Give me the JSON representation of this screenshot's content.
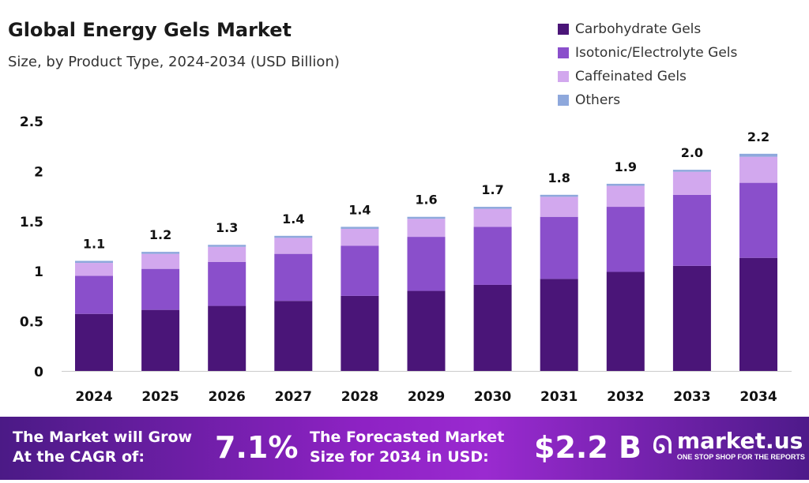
{
  "chart_data": {
    "type": "bar",
    "stacked": true,
    "title": "Global Energy Gels Market",
    "subtitle": "Size, by Product Type, 2024-2034 (USD Billion)",
    "xlabel": "",
    "ylabel": "",
    "ylim": [
      0,
      2.5
    ],
    "yticks": [
      "0",
      "0.5",
      "1",
      "1.5",
      "2",
      "2.5"
    ],
    "grid": false,
    "legend_position": "top-right",
    "categories": [
      "2024",
      "2025",
      "2026",
      "2027",
      "2028",
      "2029",
      "2030",
      "2031",
      "2032",
      "2033",
      "2034"
    ],
    "totals_labels": [
      "1.1",
      "1.2",
      "1.3",
      "1.4",
      "1.4",
      "1.6",
      "1.7",
      "1.8",
      "1.9",
      "2.0",
      "2.2"
    ],
    "series": [
      {
        "name": "Carbohydrate Gels",
        "color": "#4a1578",
        "values": [
          0.57,
          0.61,
          0.65,
          0.7,
          0.75,
          0.8,
          0.86,
          0.92,
          0.99,
          1.05,
          1.13
        ]
      },
      {
        "name": "Isotonic/Electrolyte Gels",
        "color": "#8a4fcb",
        "values": [
          0.38,
          0.41,
          0.44,
          0.47,
          0.5,
          0.54,
          0.58,
          0.62,
          0.65,
          0.71,
          0.75
        ]
      },
      {
        "name": "Caffeinated Gels",
        "color": "#d2a8ee",
        "values": [
          0.13,
          0.15,
          0.15,
          0.16,
          0.17,
          0.18,
          0.18,
          0.2,
          0.21,
          0.23,
          0.26
        ]
      },
      {
        "name": "Others",
        "color": "#8ea8dc",
        "values": [
          0.02,
          0.02,
          0.02,
          0.02,
          0.02,
          0.02,
          0.02,
          0.02,
          0.02,
          0.02,
          0.03
        ]
      }
    ]
  },
  "footer": {
    "cagr_text_1": "The Market will Grow",
    "cagr_text_2": "At the CAGR of:",
    "cagr_value": "7.1%",
    "forecast_text_1": "The Forecasted Market",
    "forecast_text_2": "Size for 2034 in USD:",
    "forecast_value": "$2.2 B",
    "logo_name": "market.us",
    "logo_tagline": "ONE STOP SHOP FOR THE REPORTS"
  }
}
